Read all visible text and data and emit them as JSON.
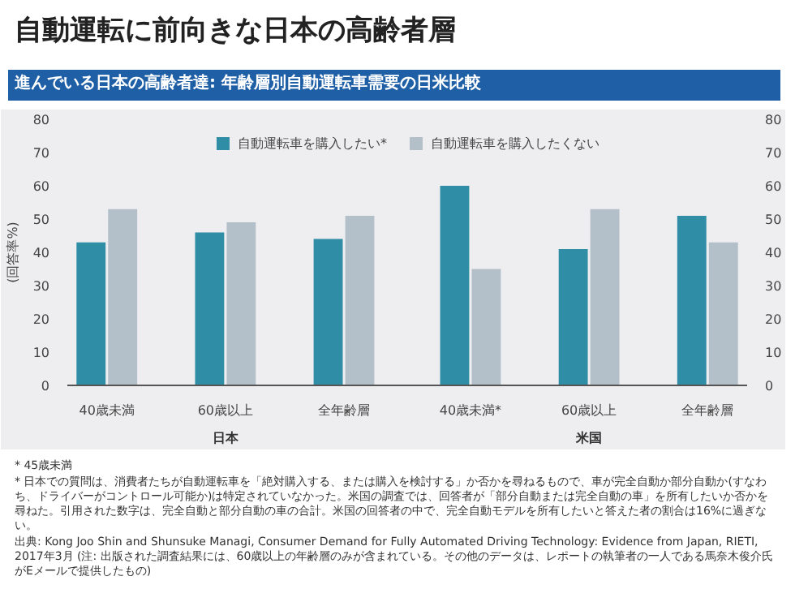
{
  "chart_data": {
    "type": "bar",
    "title": "自動運転に前向きな日本の高齢者層",
    "subtitle": "進んでいる日本の高齢者達: 年齢層別自動運転車需要の日米比較",
    "ylabel": "(回答率%)",
    "categories": [
      "40歳未満",
      "60歳以上",
      "全年齢層",
      "40歳未満*",
      "60歳以上",
      "全年齢層"
    ],
    "series": [
      {
        "name": "自動運転車を購入したい*",
        "color": "#2f8ea6",
        "values": [
          43,
          46,
          44,
          60,
          41,
          51
        ]
      },
      {
        "name": "自動運転車を購入したくない",
        "color": "#b3c0c9",
        "values": [
          53,
          49,
          51,
          35,
          53,
          43
        ]
      }
    ],
    "ylim": [
      0,
      80
    ],
    "yticks": [
      0,
      10,
      20,
      30,
      40,
      50,
      60,
      70,
      80
    ],
    "y2lim": [
      0,
      80
    ],
    "y2ticks": [
      0,
      10,
      20,
      30,
      40,
      50,
      60,
      70,
      80
    ],
    "grid": false,
    "legend": "top",
    "annotations": [
      "日本",
      "米国",
      "* 45歳未満",
      "* 日本での質問は、消費者たちが自動運転車を「絶対購入する、または購入を検討する」か否かを尋ねるもので、車が完全自動か部分自動か(すなわち、ドライバーがコントロール可能か)は特定されていなかった。米国の調査では、回答者が「部分自動または完全自動の車」を所有したいか否かを尋ねた。引用された数字は、完全自動と部分自動の車の合計。米国の回答者の中で、完全自動モデルを所有したいと答えた者の割合は16%に過ぎない。",
      "出典: Kong Joo Shin and Shunsuke Managi, Consumer Demand for Fully Automated Driving Technology: Evidence from Japan, RIETI, 2017年3月 (注: 出版された調査結果には、60歳以上の年齢層のみが含まれている。その他のデータは、レポートの執筆者の一人である馬奈木俊介氏がEメールで提供したもの)"
    ]
  }
}
